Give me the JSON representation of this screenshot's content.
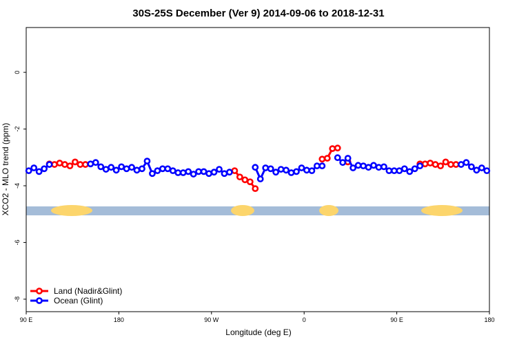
{
  "chart_data": {
    "type": "line",
    "title": "30S-25S December (Ver 9)   2014-09-06 to 2018-12-31",
    "x_label": "Longitude (deg E)",
    "y_label": "XCO2 - MLO trend (ppm)",
    "xlim": [
      90,
      540
    ],
    "xticks": [
      {
        "value": 90,
        "label": "90 E"
      },
      {
        "value": 180,
        "label": "180"
      },
      {
        "value": 270,
        "label": "90 W"
      },
      {
        "value": 360,
        "label": "0"
      },
      {
        "value": 450,
        "label": "90 E"
      },
      {
        "value": 540,
        "label": "180"
      }
    ],
    "ylim": [
      -8.44,
      1.58
    ],
    "yticks": [
      0,
      -2,
      -4,
      -6,
      -8
    ],
    "legend": "bottom-left",
    "series": [
      {
        "name": "Land (Nadir&Glint)",
        "color": "#ff0000",
        "x": [
          112.5,
          117.5,
          122.5,
          127.5,
          132.5,
          137.5,
          142.5,
          147.5,
          217.5,
          292.5,
          297.5,
          302.5,
          307.5,
          312.5,
          342.5,
          377.5,
          382.5,
          387.5,
          392.5,
          397.5,
          402.5,
          442.5,
          472.5,
          477.5,
          482.5,
          487.5,
          492.5,
          497.5,
          502.5,
          507.5
        ],
        "values": [
          -3.23,
          -3.25,
          -3.2,
          -3.25,
          -3.3,
          -3.16,
          -3.25,
          -3.25,
          null,
          -3.47,
          -3.69,
          -3.79,
          -3.86,
          -4.1,
          null,
          -3.06,
          -3.03,
          -2.69,
          -2.67,
          null,
          -3.16,
          null,
          -3.23,
          -3.23,
          -3.2,
          -3.25,
          -3.3,
          -3.16,
          -3.25,
          -3.25
        ]
      },
      {
        "name": "Ocean (Glint)",
        "color": "#0000ff",
        "x": [
          92.5,
          97.5,
          102.5,
          107.5,
          112.5,
          132.5,
          152.5,
          157.5,
          162.5,
          167.5,
          172.5,
          177.5,
          182.5,
          187.5,
          192.5,
          197.5,
          202.5,
          207.5,
          212.5,
          217.5,
          222.5,
          227.5,
          232.5,
          237.5,
          242.5,
          247.5,
          252.5,
          257.5,
          262.5,
          267.5,
          272.5,
          277.5,
          282.5,
          287.5,
          302.5,
          312.5,
          317.5,
          322.5,
          327.5,
          332.5,
          337.5,
          342.5,
          347.5,
          352.5,
          357.5,
          362.5,
          367.5,
          372.5,
          377.5,
          382.5,
          392.5,
          397.5,
          402.5,
          407.5,
          412.5,
          417.5,
          422.5,
          427.5,
          432.5,
          437.5,
          442.5,
          447.5,
          452.5,
          457.5,
          462.5,
          467.5,
          472.5,
          492.5,
          512.5,
          517.5,
          522.5,
          527.5,
          532.5,
          537.5
        ],
        "values": [
          -3.47,
          -3.37,
          -3.5,
          -3.4,
          -3.25,
          null,
          -3.23,
          -3.18,
          -3.33,
          -3.42,
          -3.35,
          -3.45,
          -3.33,
          -3.4,
          -3.35,
          -3.45,
          -3.4,
          -3.13,
          -3.57,
          -3.47,
          -3.4,
          -3.4,
          -3.47,
          -3.54,
          -3.54,
          -3.5,
          -3.59,
          -3.5,
          -3.5,
          -3.57,
          -3.52,
          -3.42,
          -3.57,
          -3.52,
          null,
          -3.35,
          -3.76,
          -3.37,
          -3.4,
          -3.52,
          -3.42,
          -3.45,
          -3.54,
          -3.5,
          -3.37,
          -3.45,
          -3.47,
          -3.3,
          -3.3,
          null,
          -3.01,
          -3.18,
          -3.03,
          -3.37,
          -3.28,
          -3.3,
          -3.35,
          -3.28,
          -3.35,
          -3.33,
          -3.47,
          -3.47,
          -3.47,
          -3.4,
          -3.5,
          -3.4,
          -3.3,
          null,
          -3.25,
          -3.18,
          -3.33,
          -3.45,
          -3.37,
          -3.47
        ]
      }
    ]
  }
}
